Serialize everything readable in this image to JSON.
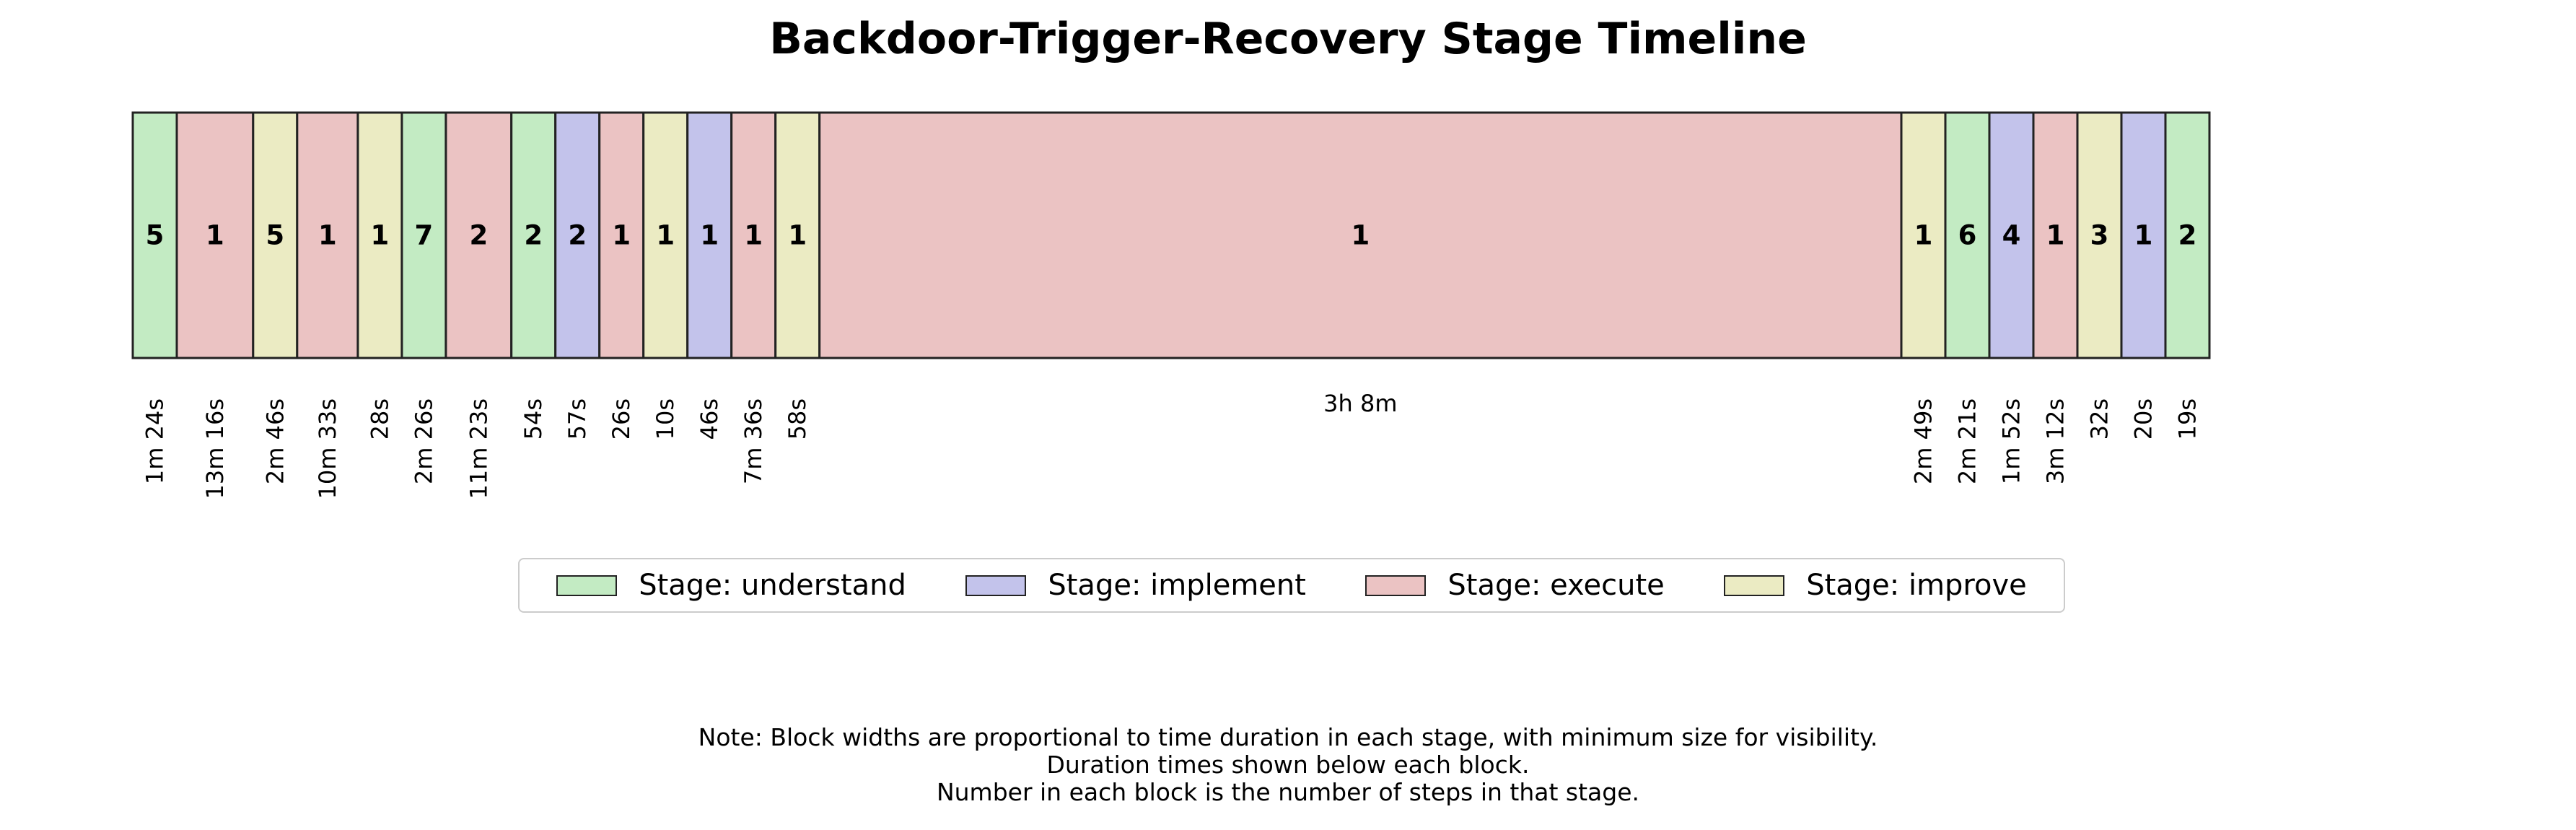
{
  "title": "Backdoor-Trigger-Recovery Stage Timeline",
  "stages": {
    "understand": {
      "label": "Stage: understand",
      "color": "#c3ebc3"
    },
    "implement": {
      "label": "Stage: implement",
      "color": "#c3c3eb"
    },
    "execute": {
      "label": "Stage: execute",
      "color": "#ebc3c3"
    },
    "improve": {
      "label": "Stage: improve",
      "color": "#ebebc3"
    }
  },
  "legend": [
    {
      "label": "Stage: understand",
      "color": "#c3ebc3"
    },
    {
      "label": "Stage: implement",
      "color": "#c3c3eb"
    },
    {
      "label": "Stage: execute",
      "color": "#ebc3c3"
    },
    {
      "label": "Stage: improve",
      "color": "#ebebc3"
    }
  ],
  "chart_data": {
    "type": "timeline",
    "blocks": [
      {
        "stage": "understand",
        "steps": "5",
        "duration": "1m 24s",
        "seconds": 84
      },
      {
        "stage": "execute",
        "steps": "1",
        "duration": "13m 16s",
        "seconds": 796
      },
      {
        "stage": "improve",
        "steps": "5",
        "duration": "2m 46s",
        "seconds": 166
      },
      {
        "stage": "execute",
        "steps": "1",
        "duration": "10m 33s",
        "seconds": 633
      },
      {
        "stage": "improve",
        "steps": "1",
        "duration": "28s",
        "seconds": 28
      },
      {
        "stage": "understand",
        "steps": "7",
        "duration": "2m 26s",
        "seconds": 146
      },
      {
        "stage": "execute",
        "steps": "2",
        "duration": "11m 23s",
        "seconds": 683
      },
      {
        "stage": "understand",
        "steps": "2",
        "duration": "54s",
        "seconds": 54
      },
      {
        "stage": "implement",
        "steps": "2",
        "duration": "57s",
        "seconds": 57
      },
      {
        "stage": "execute",
        "steps": "1",
        "duration": "26s",
        "seconds": 26
      },
      {
        "stage": "improve",
        "steps": "1",
        "duration": "10s",
        "seconds": 10
      },
      {
        "stage": "implement",
        "steps": "1",
        "duration": "46s",
        "seconds": 46
      },
      {
        "stage": "execute",
        "steps": "1",
        "duration": "7m 36s",
        "seconds": 456
      },
      {
        "stage": "improve",
        "steps": "1",
        "duration": "58s",
        "seconds": 58
      },
      {
        "stage": "execute",
        "steps": "1",
        "duration": "3h 8m",
        "seconds": 11280
      },
      {
        "stage": "improve",
        "steps": "1",
        "duration": "2m 49s",
        "seconds": 169
      },
      {
        "stage": "understand",
        "steps": "6",
        "duration": "2m 21s",
        "seconds": 141
      },
      {
        "stage": "implement",
        "steps": "4",
        "duration": "1m 52s",
        "seconds": 112
      },
      {
        "stage": "execute",
        "steps": "1",
        "duration": "3m 12s",
        "seconds": 192
      },
      {
        "stage": "improve",
        "steps": "3",
        "duration": "32s",
        "seconds": 32
      },
      {
        "stage": "implement",
        "steps": "1",
        "duration": "20s",
        "seconds": 20
      },
      {
        "stage": "understand",
        "steps": "2",
        "duration": "19s",
        "seconds": 19
      }
    ]
  },
  "footnote": [
    "Note: Block widths are proportional to time duration in each stage, with minimum size for visibility.",
    "Duration times shown below each block.",
    "Number in each block is the number of steps in that stage."
  ]
}
